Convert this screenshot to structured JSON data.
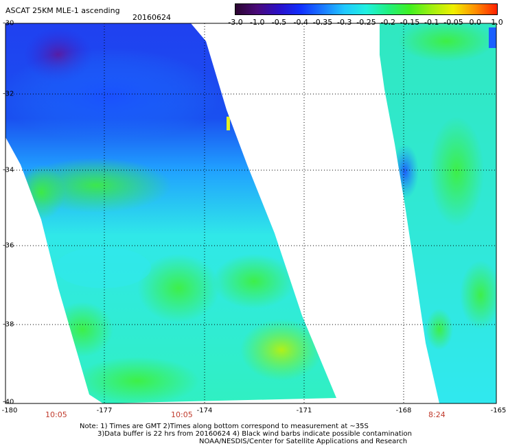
{
  "title": "ASCAT 25KM MLE-1 ascending",
  "date": "20160624",
  "colorbar": {
    "ticks": [
      "-3.0",
      "-1.0",
      "-0.5",
      "-0.4",
      "-0.35",
      "-0.3",
      "-0.25",
      "-0.2",
      "-0.15",
      "-0.1",
      "-0.05",
      "0.0",
      "1.0"
    ],
    "colors": [
      "#2b0530",
      "#4a0a7a",
      "#2a10c8",
      "#1030ff",
      "#1a78ff",
      "#20c8ff",
      "#20f0e0",
      "#20f080",
      "#40f020",
      "#a0f010",
      "#f0f000",
      "#ff9000",
      "#ff2000"
    ]
  },
  "axes": {
    "lat_labels": [
      "-30",
      "-32",
      "-34",
      "-36",
      "-38",
      "-40"
    ],
    "lon_labels": [
      "-180",
      "-177",
      "-174",
      "-171",
      "-168",
      "-165"
    ]
  },
  "times": [
    "10:05",
    "10:05",
    "8:24"
  ],
  "notes": {
    "line1": "Note: 1) Times are GMT 2)Times along bottom correspond to measurement at ~35S",
    "line2": "3)Data buffer is 22 hrs from 20160624 4) Black wind barbs indicate possible contamination",
    "line3": "NOAA/NESDIS/Center for Satellite Applications and Research"
  }
}
